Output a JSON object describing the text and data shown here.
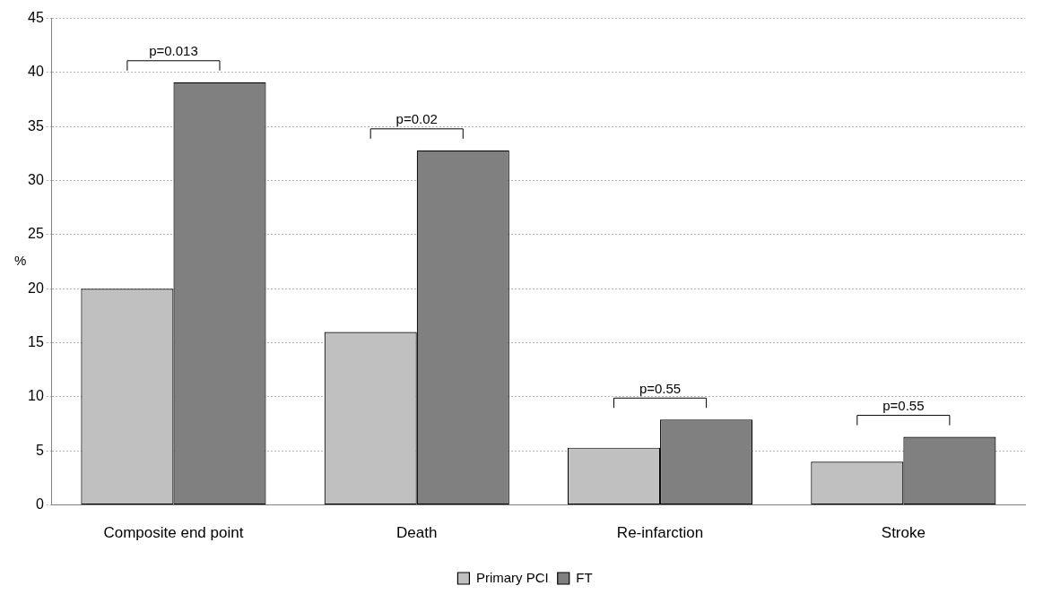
{
  "chart_data": {
    "type": "bar",
    "ylabel": "%",
    "categories": [
      "Composite end point",
      "Death",
      "Re-infarction",
      "Stroke"
    ],
    "series": [
      {
        "name": "Primary PCI",
        "color": "#c0c0c0",
        "values": [
          20.0,
          16.0,
          5.3,
          4.0
        ]
      },
      {
        "name": "FT",
        "color": "#808080",
        "values": [
          39.1,
          32.8,
          7.9,
          6.3
        ]
      }
    ],
    "ylim": [
      0,
      45
    ],
    "yticks": [
      0,
      5,
      10,
      15,
      20,
      25,
      30,
      35,
      40,
      45
    ],
    "grid": "y",
    "legend": "bottom",
    "annotations": [
      "p=0.013",
      "p=0.02",
      "p=0.55",
      "p=0.55"
    ]
  }
}
